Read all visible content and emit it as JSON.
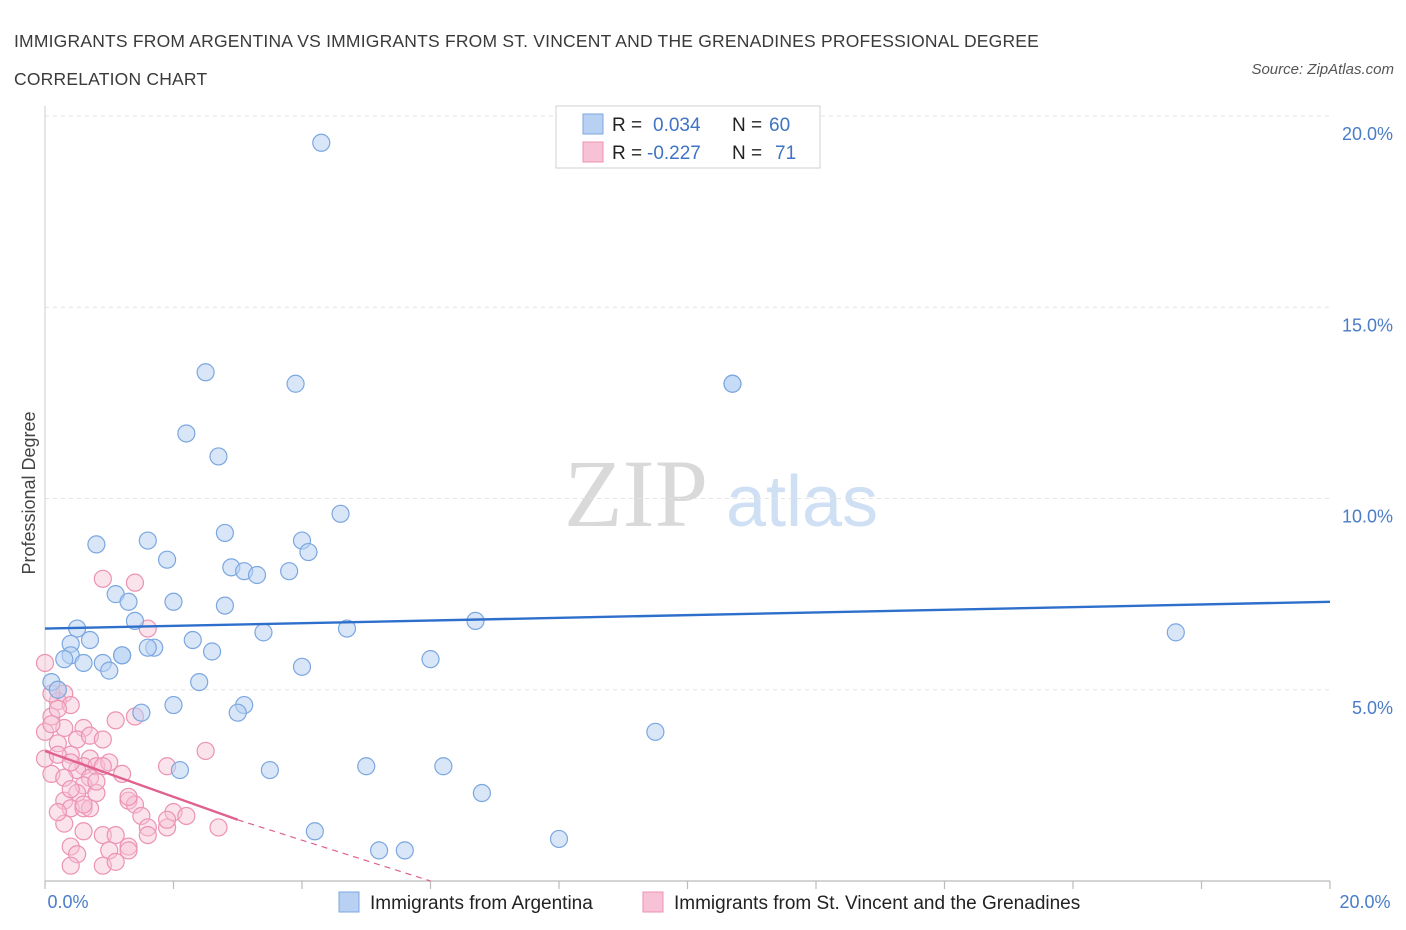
{
  "header": {
    "title": "IMMIGRANTS FROM ARGENTINA VS IMMIGRANTS FROM ST. VINCENT AND THE GRENADINES PROFESSIONAL DEGREE CORRELATION CHART",
    "source": "Source: ZipAtlas.com"
  },
  "chart_data": {
    "type": "scatter",
    "xlabel": "",
    "ylabel": "Professional Degree",
    "xlim": [
      0,
      20
    ],
    "ylim": [
      0,
      20
    ],
    "x_tick_labels": [
      "0.0%",
      "20.0%"
    ],
    "y_tick_labels": [
      "5.0%",
      "10.0%",
      "15.0%",
      "20.0%"
    ],
    "y_ticks": [
      5,
      10,
      15,
      20
    ],
    "grid": true,
    "legend_position": "bottom",
    "watermark": {
      "zip": "ZIP",
      "atlas": "atlas"
    },
    "stats_box": {
      "rows": [
        {
          "r_label": "R =",
          "r_value": "0.034",
          "n_label": "N =",
          "n_value": "60"
        },
        {
          "r_label": "R =",
          "r_value": "-0.227",
          "n_label": "N =",
          "n_value": "71"
        }
      ]
    },
    "series": [
      {
        "name": "Immigrants from Argentina",
        "color": "#7ba7e0",
        "fill": "#b8d1f3",
        "line_color": "#2e6fcc",
        "trend": {
          "x": [
            0,
            20
          ],
          "y": [
            6.6,
            7.3
          ]
        },
        "points": [
          [
            4.3,
            19.3
          ],
          [
            2.5,
            13.3
          ],
          [
            3.9,
            13.0
          ],
          [
            10.7,
            13.0
          ],
          [
            10.7,
            13.0
          ],
          [
            2.2,
            11.7
          ],
          [
            2.7,
            11.1
          ],
          [
            4.6,
            9.6
          ],
          [
            0.8,
            8.8
          ],
          [
            1.6,
            8.9
          ],
          [
            2.8,
            9.1
          ],
          [
            4.0,
            8.9
          ],
          [
            4.1,
            8.6
          ],
          [
            1.9,
            8.4
          ],
          [
            2.9,
            8.2
          ],
          [
            3.1,
            8.1
          ],
          [
            3.3,
            8.0
          ],
          [
            3.8,
            8.1
          ],
          [
            1.1,
            7.5
          ],
          [
            1.3,
            7.3
          ],
          [
            2.0,
            7.3
          ],
          [
            2.8,
            7.2
          ],
          [
            1.4,
            6.8
          ],
          [
            0.5,
            6.6
          ],
          [
            0.7,
            6.3
          ],
          [
            0.4,
            6.2
          ],
          [
            3.4,
            6.5
          ],
          [
            4.7,
            6.6
          ],
          [
            6.7,
            6.8
          ],
          [
            17.6,
            6.5
          ],
          [
            2.3,
            6.3
          ],
          [
            1.7,
            6.1
          ],
          [
            1.6,
            6.1
          ],
          [
            2.6,
            6.0
          ],
          [
            1.2,
            5.9
          ],
          [
            1.2,
            5.9
          ],
          [
            0.4,
            5.9
          ],
          [
            0.3,
            5.8
          ],
          [
            0.6,
            5.7
          ],
          [
            0.9,
            5.7
          ],
          [
            1.0,
            5.5
          ],
          [
            4.0,
            5.6
          ],
          [
            6.0,
            5.8
          ],
          [
            2.4,
            5.2
          ],
          [
            0.1,
            5.2
          ],
          [
            2.0,
            4.6
          ],
          [
            3.1,
            4.6
          ],
          [
            1.5,
            4.4
          ],
          [
            3.0,
            4.4
          ],
          [
            9.5,
            3.9
          ],
          [
            2.1,
            2.9
          ],
          [
            3.5,
            2.9
          ],
          [
            5.0,
            3.0
          ],
          [
            6.2,
            3.0
          ],
          [
            6.8,
            2.3
          ],
          [
            4.2,
            1.3
          ],
          [
            5.2,
            0.8
          ],
          [
            5.6,
            0.8
          ],
          [
            8.0,
            1.1
          ],
          [
            0.2,
            5.0
          ]
        ]
      },
      {
        "name": "Immigrants from St. Vincent and the Grenadines",
        "color": "#ec92b3",
        "fill": "#f7c2d5",
        "line_color": "#e0608f",
        "trend": {
          "x": [
            0,
            3.0
          ],
          "y": [
            3.4,
            1.6
          ]
        },
        "trend_dashed": {
          "x": [
            3.0,
            6.0
          ],
          "y": [
            1.6,
            -0.2
          ]
        },
        "points": [
          [
            0.0,
            5.7
          ],
          [
            0.2,
            5.0
          ],
          [
            0.3,
            4.9
          ],
          [
            0.2,
            4.7
          ],
          [
            0.4,
            4.6
          ],
          [
            0.1,
            4.3
          ],
          [
            0.2,
            4.5
          ],
          [
            0.6,
            4.0
          ],
          [
            0.3,
            4.0
          ],
          [
            0.0,
            3.9
          ],
          [
            0.5,
            3.7
          ],
          [
            0.7,
            3.8
          ],
          [
            0.2,
            3.6
          ],
          [
            0.9,
            3.7
          ],
          [
            0.4,
            3.3
          ],
          [
            0.7,
            3.2
          ],
          [
            0.6,
            3.0
          ],
          [
            0.5,
            2.9
          ],
          [
            0.8,
            3.0
          ],
          [
            0.7,
            2.7
          ],
          [
            0.1,
            2.8
          ],
          [
            1.0,
            3.1
          ],
          [
            0.9,
            3.0
          ],
          [
            0.3,
            2.7
          ],
          [
            0.6,
            2.5
          ],
          [
            1.2,
            2.8
          ],
          [
            0.5,
            2.3
          ],
          [
            0.8,
            2.3
          ],
          [
            0.3,
            2.1
          ],
          [
            0.4,
            1.9
          ],
          [
            0.6,
            1.9
          ],
          [
            0.7,
            1.9
          ],
          [
            1.3,
            2.1
          ],
          [
            1.4,
            2.0
          ],
          [
            1.5,
            1.7
          ],
          [
            0.3,
            1.5
          ],
          [
            0.6,
            1.3
          ],
          [
            0.9,
            1.2
          ],
          [
            1.1,
            1.2
          ],
          [
            1.6,
            1.4
          ],
          [
            1.9,
            1.4
          ],
          [
            2.0,
            1.8
          ],
          [
            2.7,
            1.4
          ],
          [
            1.6,
            1.2
          ],
          [
            1.3,
            0.9
          ],
          [
            0.4,
            0.9
          ],
          [
            0.5,
            0.7
          ],
          [
            1.0,
            0.8
          ],
          [
            1.3,
            0.8
          ],
          [
            0.4,
            0.4
          ],
          [
            0.9,
            0.4
          ],
          [
            1.1,
            0.5
          ],
          [
            1.4,
            4.3
          ],
          [
            1.1,
            4.2
          ],
          [
            1.4,
            7.8
          ],
          [
            0.9,
            7.9
          ],
          [
            1.6,
            6.6
          ],
          [
            2.5,
            3.4
          ],
          [
            1.9,
            3.0
          ],
          [
            0.0,
            3.2
          ],
          [
            0.1,
            4.9
          ],
          [
            0.2,
            3.3
          ],
          [
            0.4,
            2.4
          ],
          [
            0.8,
            2.6
          ],
          [
            1.3,
            2.2
          ],
          [
            0.2,
            1.8
          ],
          [
            0.6,
            2.0
          ],
          [
            1.9,
            1.6
          ],
          [
            2.2,
            1.7
          ],
          [
            0.4,
            3.1
          ],
          [
            0.1,
            4.1
          ]
        ]
      }
    ]
  }
}
